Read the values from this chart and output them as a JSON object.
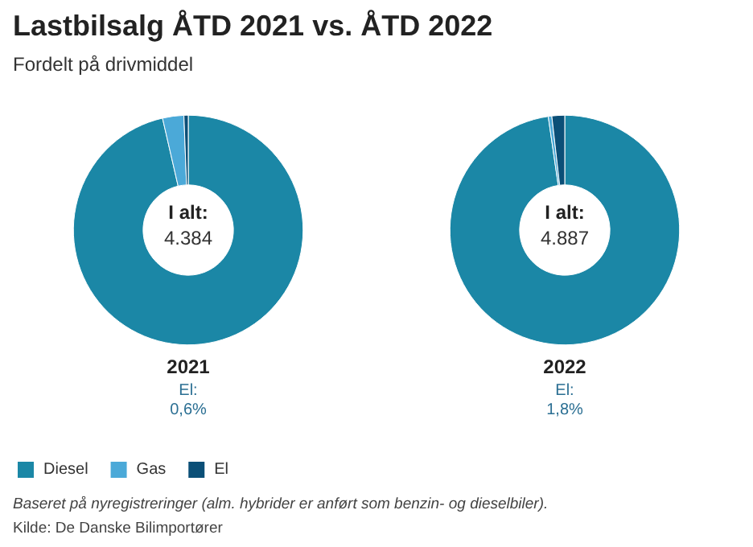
{
  "chart_data": [
    {
      "type": "donut",
      "title": "Lastbilsalg ÅTD 2021 vs. ÅTD 2022",
      "subtitle": "Fordelt på drivmiddel",
      "xlabel": "2021",
      "categories": [
        "Diesel",
        "Gas",
        "El"
      ],
      "values": [
        96.4,
        3.0,
        0.6
      ],
      "colors": [
        "#1b87a6",
        "#4ba9d8",
        "#0b4f77"
      ],
      "annotations": [
        "I alt:",
        "4.384",
        "El:",
        "0,6%"
      ],
      "legend": "bottom left"
    },
    {
      "type": "donut",
      "xlabel": "2022",
      "categories": [
        null,
        null,
        null
      ],
      "values": [
        97.7,
        0.5,
        1.8
      ],
      "colors": [
        "#1b87a6",
        "#4ba9d8",
        "#0b4f77"
      ],
      "annotations": [
        "I alt:",
        "4.887",
        "El:",
        "1,8%",
        "Baseret på nyregistreringer (alm. hybrider er anført som benzin- og dieselbiler).",
        "Kilde: De Danske Bilimportører"
      ],
      "legend": false
    }
  ]
}
